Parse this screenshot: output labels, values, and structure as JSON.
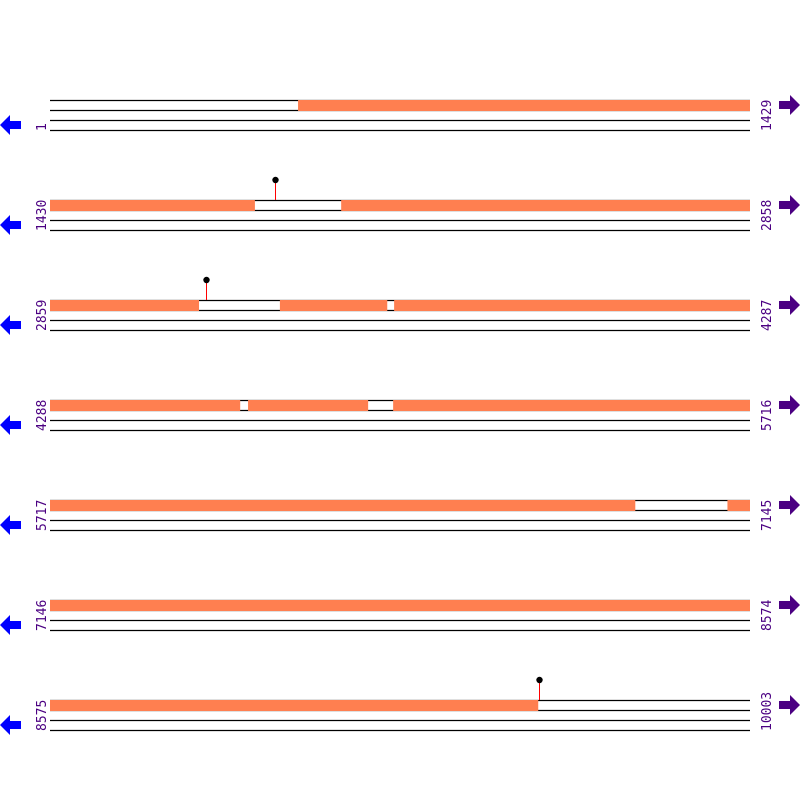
{
  "colors": {
    "feature": "#FF7F50",
    "line": "#000000",
    "stem": "#FF0000",
    "label": "#4B0082",
    "left_arrow": "#0000FF",
    "right_arrow": "#4B0082"
  },
  "icons": {
    "left": "arrow-left-icon",
    "right": "arrow-right-icon",
    "marker": "lollipop-marker"
  },
  "rows": [
    {
      "start": "1",
      "end": "1429",
      "features": [
        [
          507,
          1429
        ]
      ],
      "markers": []
    },
    {
      "start": "1430",
      "end": "2858",
      "features": [
        [
          1430,
          1848
        ],
        [
          2024,
          2858
        ]
      ],
      "markers": [
        1889
      ]
    },
    {
      "start": "2859",
      "end": "4287",
      "features": [
        [
          2859,
          3163
        ],
        [
          3328,
          3547
        ],
        [
          3561,
          4287
        ]
      ],
      "markers": [
        3177
      ]
    },
    {
      "start": "4288",
      "end": "5716",
      "features": [
        [
          4288,
          4676
        ],
        [
          4692,
          4937
        ],
        [
          4988,
          5716
        ]
      ],
      "markers": []
    },
    {
      "start": "5717",
      "end": "7145",
      "features": [
        [
          5717,
          6911
        ],
        [
          7099,
          7145
        ]
      ],
      "markers": []
    },
    {
      "start": "7146",
      "end": "8574",
      "features": [
        [
          7146,
          8574
        ]
      ],
      "markers": []
    },
    {
      "start": "8575",
      "end": "10003",
      "features": [
        [
          8575,
          9571
        ]
      ],
      "markers": [
        9573
      ]
    }
  ]
}
